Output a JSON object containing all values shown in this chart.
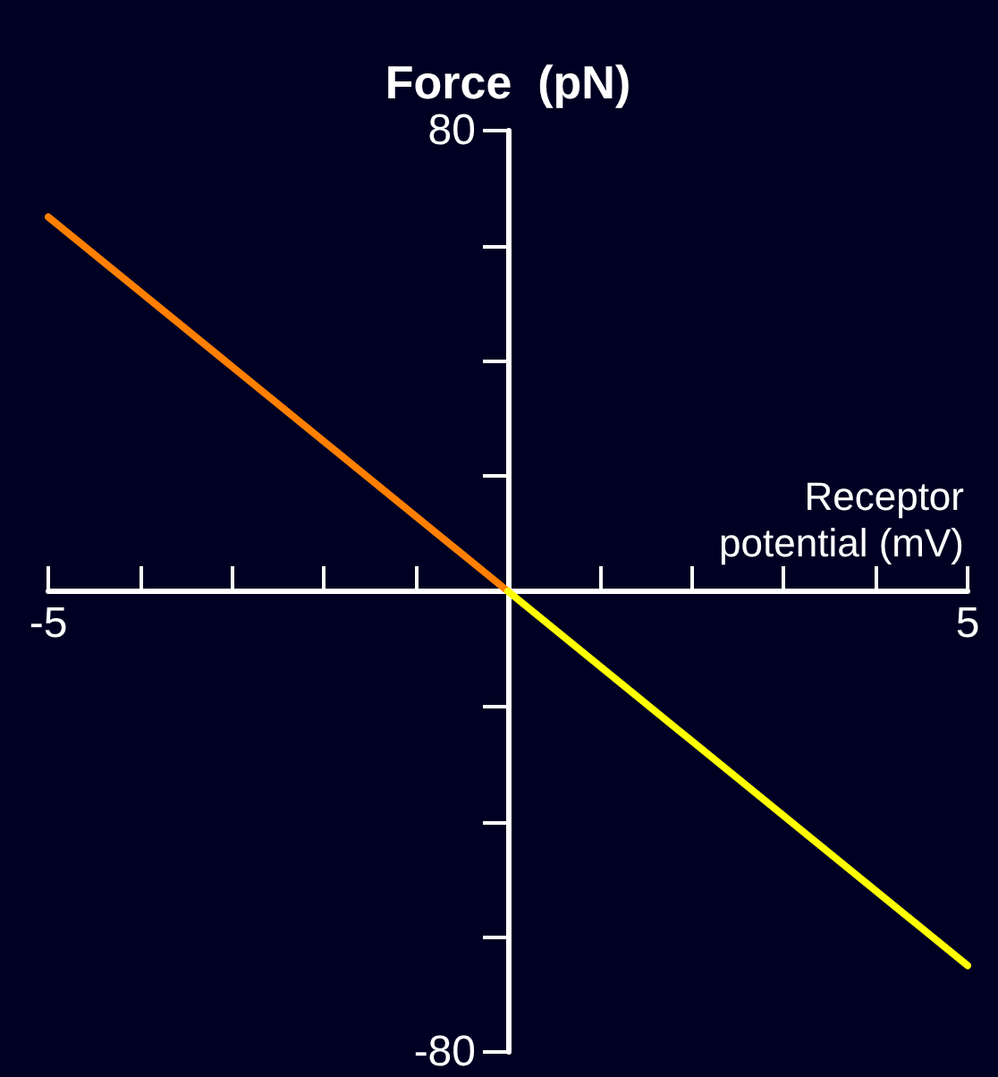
{
  "chart_data": {
    "type": "line",
    "ylabel": "Force  (pN)",
    "xlabel": "Receptor\npotential (mV)",
    "series": [
      {
        "color": "#ff7f00",
        "x": [
          -5,
          0
        ],
        "values": [
          65,
          0
        ]
      },
      {
        "color": "#ffff00",
        "x": [
          0,
          5
        ],
        "values": [
          0,
          -65
        ]
      }
    ],
    "xlim": [
      -5,
      5
    ],
    "xticks": [
      -5,
      {
        "value": -4,
        "label": null
      },
      {
        "value": -3,
        "label": null
      },
      {
        "value": -2,
        "label": null
      },
      {
        "value": -1,
        "label": null
      },
      {
        "value": 0,
        "label": null
      },
      {
        "value": 1,
        "label": null
      },
      {
        "value": 2,
        "label": null
      },
      {
        "value": 3,
        "label": null
      },
      {
        "value": 4,
        "label": null
      },
      5
    ],
    "ylim": [
      -80,
      80
    ],
    "yticks": [
      -80,
      {
        "value": -60,
        "label": null
      },
      {
        "value": -40,
        "label": null
      },
      {
        "value": -20,
        "label": null
      },
      {
        "value": 0,
        "label": null
      },
      {
        "value": 20,
        "label": null
      },
      {
        "value": 40,
        "label": null
      },
      {
        "value": 60,
        "label": null
      },
      80
    ],
    "marker": "none",
    "line_style": "solid"
  }
}
